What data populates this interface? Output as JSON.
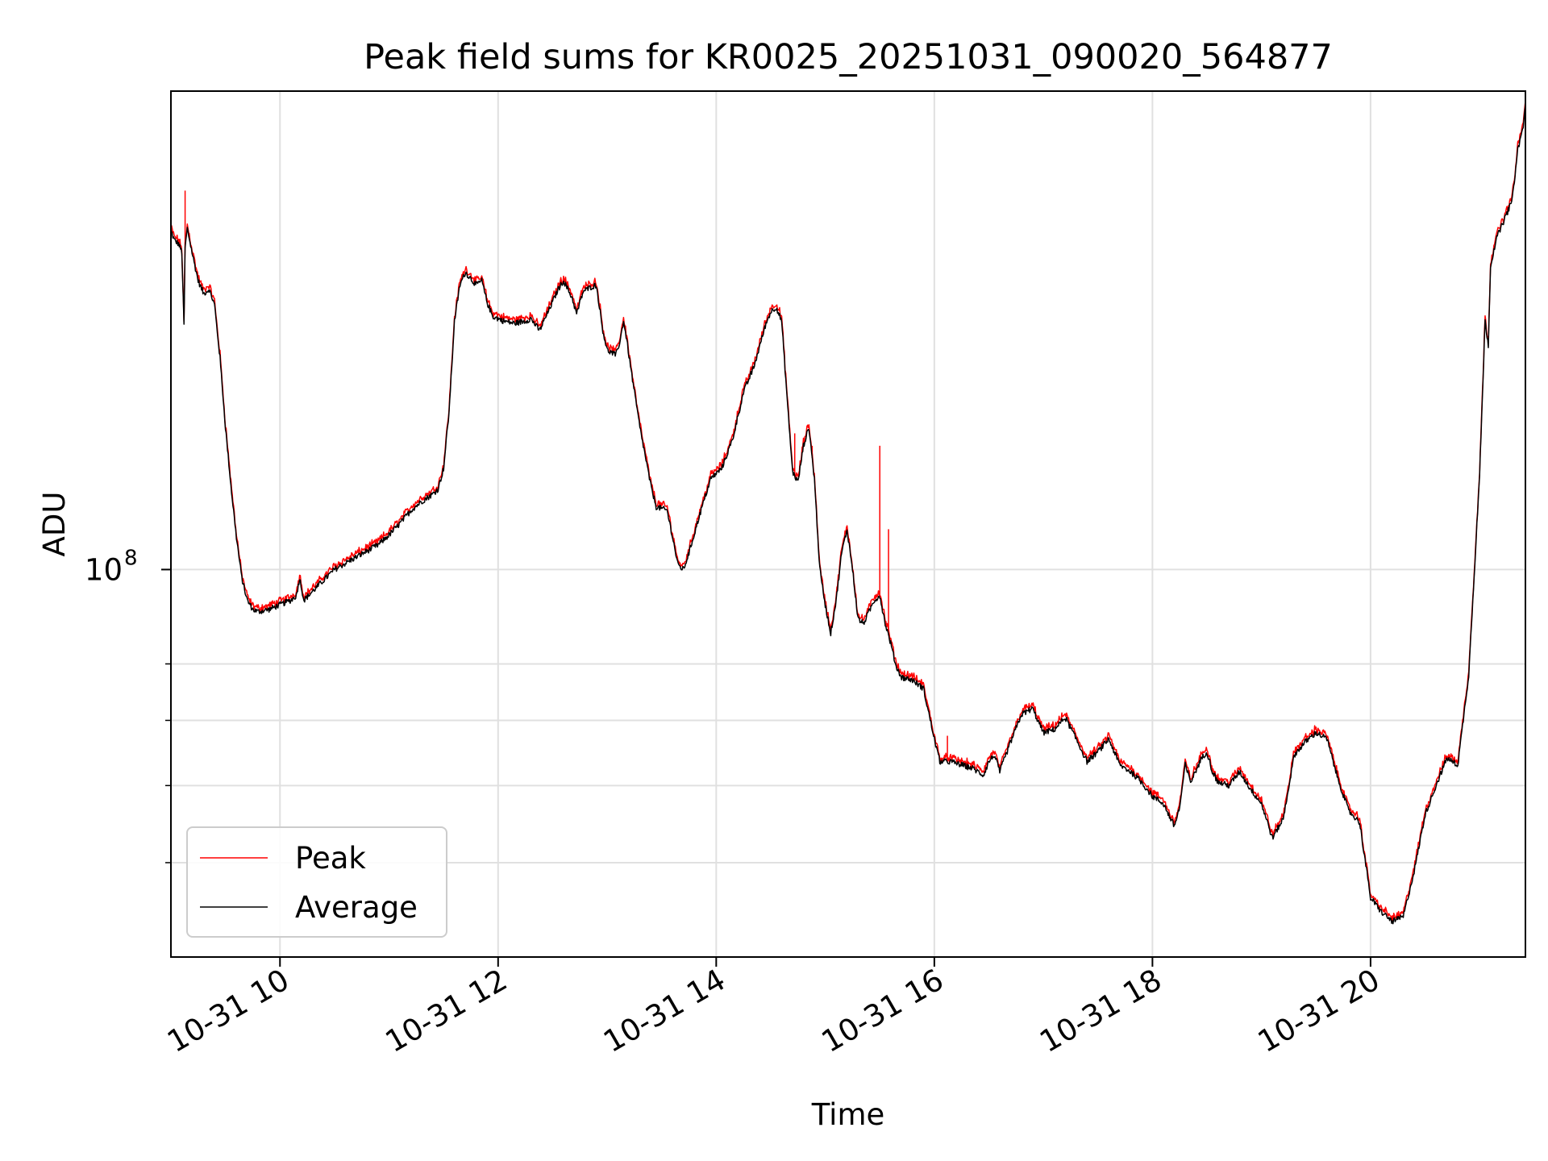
{
  "chart_data": {
    "type": "line",
    "title": "Peak field sums for KR0025_20251031_090020_564877",
    "xlabel": "Time",
    "ylabel": "ADU",
    "yscale": "log",
    "ylim": [
      40000000,
      310000000
    ],
    "xlim": [
      9.0,
      21.42
    ],
    "grid": true,
    "x_ticks": [
      {
        "value": 10,
        "label": "10-31 10"
      },
      {
        "value": 12,
        "label": "10-31 12"
      },
      {
        "value": 14,
        "label": "10-31 14"
      },
      {
        "value": 16,
        "label": "10-31 16"
      },
      {
        "value": 18,
        "label": "10-31 18"
      },
      {
        "value": 20,
        "label": "10-31 20"
      }
    ],
    "y_major_ticks": [
      {
        "value": 100000000,
        "label": "10",
        "exponent": "8"
      }
    ],
    "y_minor_ticks": [
      50000000,
      60000000,
      70000000,
      80000000
    ],
    "legend": {
      "position": "lower-left",
      "entries": [
        {
          "name": "Peak",
          "color": "#ff0000"
        },
        {
          "name": "Average",
          "color": "#000000"
        }
      ]
    },
    "x_units": "hour of day (2025-10-31)",
    "average_series": {
      "name": "Average",
      "color": "#000000",
      "points": [
        [
          9.0,
          223000000
        ],
        [
          9.03,
          218000000
        ],
        [
          9.07,
          216000000
        ],
        [
          9.1,
          212000000
        ],
        [
          9.12,
          178000000
        ],
        [
          9.13,
          214000000
        ],
        [
          9.15,
          224000000
        ],
        [
          9.2,
          210000000
        ],
        [
          9.25,
          198000000
        ],
        [
          9.3,
          192000000
        ],
        [
          9.35,
          194000000
        ],
        [
          9.4,
          187000000
        ],
        [
          9.45,
          165000000
        ],
        [
          9.5,
          140000000
        ],
        [
          9.55,
          122000000
        ],
        [
          9.6,
          108000000
        ],
        [
          9.65,
          98000000
        ],
        [
          9.7,
          93000000
        ],
        [
          9.75,
          91000000
        ],
        [
          9.8,
          90500000
        ],
        [
          9.9,
          91000000
        ],
        [
          10.0,
          92000000
        ],
        [
          10.1,
          93000000
        ],
        [
          10.15,
          94000000
        ],
        [
          10.18,
          98000000
        ],
        [
          10.22,
          93000000
        ],
        [
          10.3,
          95000000
        ],
        [
          10.4,
          97500000
        ],
        [
          10.5,
          100000000
        ],
        [
          10.6,
          101500000
        ],
        [
          10.7,
          103000000
        ],
        [
          10.8,
          104500000
        ],
        [
          10.9,
          106000000
        ],
        [
          11.0,
          108500000
        ],
        [
          11.1,
          111500000
        ],
        [
          11.2,
          115000000
        ],
        [
          11.3,
          117500000
        ],
        [
          11.4,
          119500000
        ],
        [
          11.45,
          121000000
        ],
        [
          11.5,
          127000000
        ],
        [
          11.55,
          145000000
        ],
        [
          11.6,
          180000000
        ],
        [
          11.65,
          196000000
        ],
        [
          11.7,
          202000000
        ],
        [
          11.8,
          196000000
        ],
        [
          11.85,
          198000000
        ],
        [
          11.9,
          188000000
        ],
        [
          11.95,
          182000000
        ],
        [
          12.05,
          180000000
        ],
        [
          12.15,
          179000000
        ],
        [
          12.25,
          180000000
        ],
        [
          12.3,
          181000000
        ],
        [
          12.38,
          176000000
        ],
        [
          12.45,
          183000000
        ],
        [
          12.55,
          194000000
        ],
        [
          12.6,
          198000000
        ],
        [
          12.68,
          190000000
        ],
        [
          12.72,
          183000000
        ],
        [
          12.78,
          193000000
        ],
        [
          12.85,
          195000000
        ],
        [
          12.9,
          196000000
        ],
        [
          12.93,
          186000000
        ],
        [
          12.96,
          176000000
        ],
        [
          13.0,
          168000000
        ],
        [
          13.08,
          166000000
        ],
        [
          13.12,
          172000000
        ],
        [
          13.15,
          180000000
        ],
        [
          13.18,
          172000000
        ],
        [
          13.22,
          160000000
        ],
        [
          13.3,
          140000000
        ],
        [
          13.4,
          122000000
        ],
        [
          13.45,
          116000000
        ],
        [
          13.55,
          115000000
        ],
        [
          13.6,
          108000000
        ],
        [
          13.65,
          101000000
        ],
        [
          13.7,
          100000000
        ],
        [
          13.75,
          104000000
        ],
        [
          13.85,
          114000000
        ],
        [
          13.95,
          124000000
        ],
        [
          14.05,
          127000000
        ],
        [
          14.15,
          136000000
        ],
        [
          14.25,
          152000000
        ],
        [
          14.35,
          162000000
        ],
        [
          14.45,
          178000000
        ],
        [
          14.5,
          184000000
        ],
        [
          14.55,
          186000000
        ],
        [
          14.6,
          180000000
        ],
        [
          14.65,
          150000000
        ],
        [
          14.7,
          126000000
        ],
        [
          14.75,
          123000000
        ],
        [
          14.8,
          134000000
        ],
        [
          14.85,
          140000000
        ],
        [
          14.9,
          124000000
        ],
        [
          14.95,
          100000000
        ],
        [
          15.0,
          92000000
        ],
        [
          15.05,
          86000000
        ],
        [
          15.1,
          93000000
        ],
        [
          15.15,
          104000000
        ],
        [
          15.2,
          110000000
        ],
        [
          15.25,
          100000000
        ],
        [
          15.3,
          89000000
        ],
        [
          15.35,
          88000000
        ],
        [
          15.45,
          93000000
        ],
        [
          15.5,
          94000000
        ],
        [
          15.55,
          88000000
        ],
        [
          15.6,
          84000000
        ],
        [
          15.65,
          79500000
        ],
        [
          15.7,
          77500000
        ],
        [
          15.8,
          77000000
        ],
        [
          15.9,
          75500000
        ],
        [
          16.0,
          67000000
        ],
        [
          16.05,
          63500000
        ],
        [
          16.15,
          63500000
        ],
        [
          16.25,
          63000000
        ],
        [
          16.35,
          62500000
        ],
        [
          16.45,
          61500000
        ],
        [
          16.5,
          63500000
        ],
        [
          16.55,
          64500000
        ],
        [
          16.6,
          62000000
        ],
        [
          16.7,
          66500000
        ],
        [
          16.8,
          71000000
        ],
        [
          16.9,
          72000000
        ],
        [
          17.0,
          68000000
        ],
        [
          17.1,
          68500000
        ],
        [
          17.2,
          70500000
        ],
        [
          17.3,
          67000000
        ],
        [
          17.4,
          63500000
        ],
        [
          17.5,
          65000000
        ],
        [
          17.6,
          67000000
        ],
        [
          17.7,
          63000000
        ],
        [
          17.8,
          62000000
        ],
        [
          17.9,
          60500000
        ],
        [
          18.0,
          58500000
        ],
        [
          18.1,
          57500000
        ],
        [
          18.2,
          54500000
        ],
        [
          18.25,
          57000000
        ],
        [
          18.3,
          63000000
        ],
        [
          18.35,
          60500000
        ],
        [
          18.45,
          64000000
        ],
        [
          18.5,
          65000000
        ],
        [
          18.55,
          62000000
        ],
        [
          18.6,
          60500000
        ],
        [
          18.7,
          60000000
        ],
        [
          18.8,
          62000000
        ],
        [
          18.9,
          59500000
        ],
        [
          19.0,
          57500000
        ],
        [
          19.1,
          53000000
        ],
        [
          19.2,
          55500000
        ],
        [
          19.3,
          64500000
        ],
        [
          19.4,
          66500000
        ],
        [
          19.5,
          68000000
        ],
        [
          19.6,
          67000000
        ],
        [
          19.7,
          61000000
        ],
        [
          19.8,
          56500000
        ],
        [
          19.9,
          55000000
        ],
        [
          20.0,
          46000000
        ],
        [
          20.1,
          44500000
        ],
        [
          20.2,
          43500000
        ],
        [
          20.3,
          44000000
        ],
        [
          20.4,
          49000000
        ],
        [
          20.5,
          56000000
        ],
        [
          20.6,
          60000000
        ],
        [
          20.7,
          64000000
        ],
        [
          20.8,
          63000000
        ],
        [
          20.9,
          78000000
        ],
        [
          21.0,
          125000000
        ],
        [
          21.05,
          180000000
        ],
        [
          21.08,
          170000000
        ],
        [
          21.1,
          205000000
        ],
        [
          21.15,
          218000000
        ],
        [
          21.2,
          225000000
        ],
        [
          21.25,
          232000000
        ],
        [
          21.3,
          240000000
        ],
        [
          21.35,
          270000000
        ],
        [
          21.4,
          285000000
        ],
        [
          21.42,
          300000000
        ]
      ]
    },
    "peak_spikes": [
      {
        "x": 9.13,
        "y": 245000000
      },
      {
        "x": 14.72,
        "y": 138000000
      },
      {
        "x": 14.88,
        "y": 134000000
      },
      {
        "x": 15.5,
        "y": 134000000
      },
      {
        "x": 15.58,
        "y": 110000000
      },
      {
        "x": 16.12,
        "y": 67500000
      }
    ]
  }
}
